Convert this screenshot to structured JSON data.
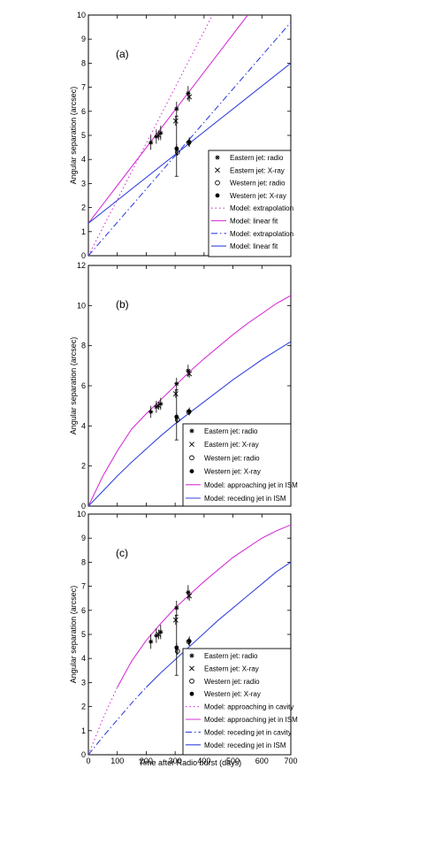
{
  "figure": {
    "xlabel": "Time after Radio burst (days)",
    "ylabel": "Angular separation (arcsec)"
  },
  "chart_data": [
    {
      "type": "line",
      "panel_label": "(a)",
      "xlim": [
        0,
        700
      ],
      "ylim": [
        0,
        10
      ],
      "xticks": [],
      "yticks": [
        0,
        1,
        2,
        3,
        4,
        5,
        6,
        7,
        8,
        9,
        10
      ],
      "legend_position": "bottom-right",
      "series": [
        {
          "name": "Eastern jet: radio",
          "kind": "points",
          "marker": "star",
          "color": "#000000",
          "points": [
            [
              216,
              4.7
            ],
            [
              235,
              4.95
            ],
            [
              250,
              5.1
            ],
            [
              305,
              6.1
            ],
            [
              345,
              6.75
            ]
          ],
          "yerr": 0.3
        },
        {
          "name": "Eastern jet: X-ray",
          "kind": "points",
          "marker": "cross",
          "color": "#000000",
          "points": [
            [
              243,
              5.0
            ],
            [
              302,
              5.6
            ],
            [
              349,
              6.6
            ]
          ],
          "yerr": 0.2
        },
        {
          "name": "Western jet: radio",
          "kind": "points",
          "marker": "circle",
          "color": "#000000",
          "points": [
            [
              308,
              4.3
            ],
            [
              347,
              4.7
            ]
          ],
          "yerr": 0.15
        },
        {
          "name": "Western jet: X-ray",
          "kind": "points",
          "marker": "dot",
          "color": "#000000",
          "points": [
            [
              305,
              4.45
            ],
            [
              349,
              4.72
            ]
          ],
          "yerr": 0.2,
          "big_err": [
            305,
            3.3,
            5.8
          ]
        },
        {
          "name": "Model: extrapolation",
          "kind": "line",
          "dash": "1.5 3",
          "color": "#d633d6",
          "x": [
            0,
            429
          ],
          "y": [
            0,
            10
          ]
        },
        {
          "name": "Model: linear fit",
          "kind": "line",
          "dash": "",
          "color": "#d633d6",
          "x": [
            0,
            551
          ],
          "y": [
            1.35,
            10
          ]
        },
        {
          "name": "Model: extrapolation",
          "kind": "line",
          "dash": "7 3 1.5 3",
          "color": "#3344dd",
          "x": [
            0,
            700
          ],
          "y": [
            0,
            9.7
          ]
        },
        {
          "name": "Model: linear fit",
          "kind": "line",
          "dash": "",
          "color": "#3344dd",
          "x": [
            0,
            700
          ],
          "y": [
            1.35,
            8.0
          ]
        }
      ]
    },
    {
      "type": "line",
      "panel_label": "(b)",
      "xlim": [
        0,
        700
      ],
      "ylim": [
        0,
        12
      ],
      "xticks": [],
      "yticks": [
        0,
        2,
        4,
        6,
        8,
        10,
        12
      ],
      "legend_position": "bottom-right",
      "series": [
        {
          "name": "Eastern jet: radio",
          "kind": "points",
          "marker": "star",
          "color": "#000000",
          "points": [
            [
              216,
              4.7
            ],
            [
              235,
              4.95
            ],
            [
              250,
              5.1
            ],
            [
              305,
              6.1
            ],
            [
              345,
              6.75
            ]
          ],
          "yerr": 0.3
        },
        {
          "name": "Eastern jet: X-ray",
          "kind": "points",
          "marker": "cross",
          "color": "#000000",
          "points": [
            [
              243,
              5.0
            ],
            [
              302,
              5.6
            ],
            [
              349,
              6.6
            ]
          ],
          "yerr": 0.2
        },
        {
          "name": "Western jet: radio",
          "kind": "points",
          "marker": "circle",
          "color": "#000000",
          "points": [
            [
              308,
              4.3
            ],
            [
              347,
              4.7
            ]
          ],
          "yerr": 0.15
        },
        {
          "name": "Western jet: X-ray",
          "kind": "points",
          "marker": "dot",
          "color": "#000000",
          "points": [
            [
              305,
              4.45
            ],
            [
              349,
              4.72
            ]
          ],
          "yerr": 0.2,
          "big_err": [
            305,
            3.3,
            5.8
          ]
        },
        {
          "name": "Model: approaching jet in ISM",
          "kind": "line",
          "dash": "",
          "color": "#d633d6",
          "x": [
            0,
            50,
            100,
            150,
            200,
            250,
            300,
            350,
            400,
            450,
            500,
            550,
            600,
            650,
            700
          ],
          "y": [
            0,
            1.5,
            2.75,
            3.85,
            4.6,
            5.3,
            6.0,
            6.7,
            7.35,
            7.95,
            8.55,
            9.1,
            9.6,
            10.1,
            10.5
          ]
        },
        {
          "name": "Model: receding jet in ISM",
          "kind": "line",
          "dash": "",
          "color": "#3344dd",
          "x": [
            0,
            50,
            100,
            150,
            200,
            250,
            300,
            350,
            400,
            450,
            500,
            550,
            600,
            650,
            700
          ],
          "y": [
            0,
            0.75,
            1.5,
            2.2,
            2.85,
            3.5,
            4.1,
            4.65,
            5.2,
            5.75,
            6.3,
            6.8,
            7.3,
            7.75,
            8.2
          ]
        }
      ]
    },
    {
      "type": "line",
      "panel_label": "(c)",
      "xlim": [
        0,
        700
      ],
      "ylim": [
        0,
        10
      ],
      "xticks": [
        0,
        100,
        200,
        300,
        400,
        500,
        600,
        700
      ],
      "yticks": [
        0,
        1,
        2,
        3,
        4,
        5,
        6,
        7,
        8,
        9,
        10
      ],
      "legend_position": "bottom-right",
      "series": [
        {
          "name": "Eastern jet: radio",
          "kind": "points",
          "marker": "star",
          "color": "#000000",
          "points": [
            [
              216,
              4.7
            ],
            [
              235,
              4.95
            ],
            [
              250,
              5.1
            ],
            [
              305,
              6.1
            ],
            [
              345,
              6.75
            ]
          ],
          "yerr": 0.3
        },
        {
          "name": "Eastern jet: X-ray",
          "kind": "points",
          "marker": "cross",
          "color": "#000000",
          "points": [
            [
              243,
              5.0
            ],
            [
              302,
              5.6
            ],
            [
              349,
              6.6
            ]
          ],
          "yerr": 0.2
        },
        {
          "name": "Western jet: radio",
          "kind": "points",
          "marker": "circle",
          "color": "#000000",
          "points": [
            [
              308,
              4.3
            ],
            [
              347,
              4.7
            ]
          ],
          "yerr": 0.15
        },
        {
          "name": "Western jet: X-ray",
          "kind": "points",
          "marker": "dot",
          "color": "#000000",
          "points": [
            [
              305,
              4.45
            ],
            [
              349,
              4.72
            ]
          ],
          "yerr": 0.2,
          "big_err": [
            305,
            3.3,
            5.8
          ]
        },
        {
          "name": "Model: approaching in cavity",
          "kind": "line",
          "dash": "1.5 3",
          "color": "#d633d6",
          "x": [
            0,
            50,
            100
          ],
          "y": [
            0,
            1.5,
            2.8
          ]
        },
        {
          "name": "Model: approaching jet in ISM",
          "kind": "line",
          "dash": "",
          "color": "#d633d6",
          "x": [
            100,
            150,
            200,
            250,
            300,
            350,
            400,
            450,
            500,
            550,
            600,
            650,
            700
          ],
          "y": [
            2.8,
            3.9,
            4.75,
            5.45,
            6.1,
            6.65,
            7.2,
            7.7,
            8.2,
            8.6,
            9.0,
            9.3,
            9.55
          ]
        },
        {
          "name": "Model: receding jet in cavity",
          "kind": "line",
          "dash": "7 3 1.5 3",
          "color": "#3344dd",
          "x": [
            0,
            50,
            100,
            150,
            200
          ],
          "y": [
            0,
            0.75,
            1.45,
            2.15,
            2.8
          ]
        },
        {
          "name": "Model: receding jet in ISM",
          "kind": "line",
          "dash": "",
          "color": "#3344dd",
          "x": [
            200,
            250,
            300,
            350,
            400,
            450,
            500,
            550,
            600,
            650,
            700
          ],
          "y": [
            2.8,
            3.4,
            3.95,
            4.5,
            5.05,
            5.6,
            6.1,
            6.6,
            7.1,
            7.6,
            8.0
          ]
        }
      ]
    }
  ]
}
